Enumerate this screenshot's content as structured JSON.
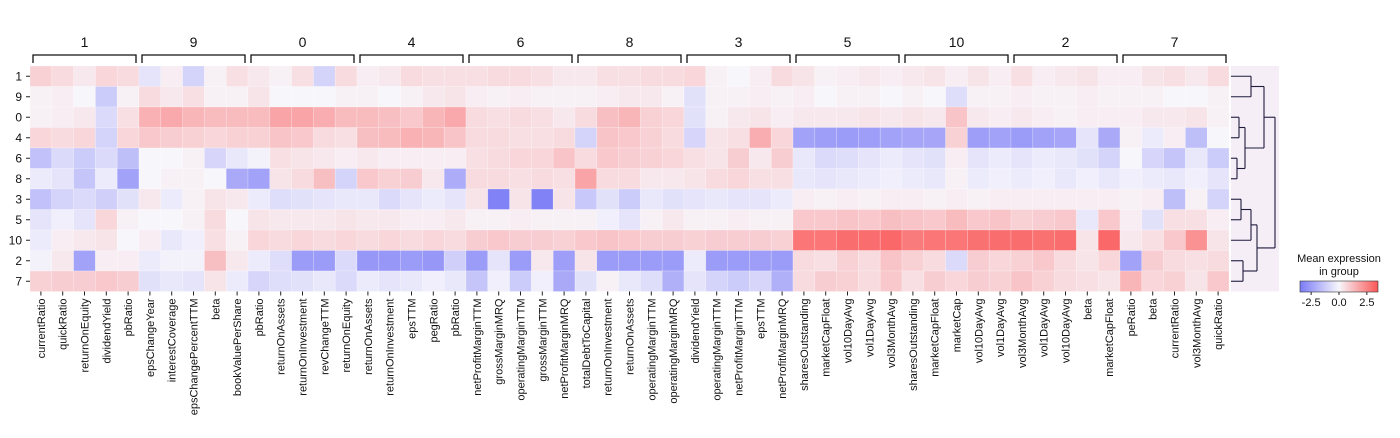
{
  "chart_data": {
    "type": "heatmap",
    "title": "",
    "colorbar": {
      "title_line1": "Mean expression",
      "title_line2": "in group",
      "ticks": [
        "-2.5",
        "0.0",
        "2.5"
      ],
      "vmin": -3.5,
      "vmax": 3.5,
      "low_color": "#7b7bf7",
      "mid_color": "#f7f6fb",
      "high_color": "#fb5656"
    },
    "rows": [
      "1",
      "9",
      "0",
      "4",
      "6",
      "8",
      "3",
      "5",
      "10",
      "2",
      "7"
    ],
    "groups": [
      {
        "label": "1",
        "features": [
          "currentRatio",
          "quickRatio",
          "returnOnEquity",
          "dividendYield",
          "pbRatio"
        ]
      },
      {
        "label": "9",
        "features": [
          "epsChangeYear",
          "interestCoverage",
          "epsChangePercentTTM",
          "beta",
          "bookValuePerShare"
        ]
      },
      {
        "label": "0",
        "features": [
          "pbRatio",
          "returnOnAssets",
          "returnOnInvestment",
          "revChangeTTM",
          "returnOnEquity"
        ]
      },
      {
        "label": "4",
        "features": [
          "returnOnAssets",
          "returnOnInvestment",
          "epsTTM",
          "pegRatio",
          "pbRatio"
        ]
      },
      {
        "label": "6",
        "features": [
          "netProfitMarginTTM",
          "grossMarginMRQ",
          "operatingMarginTTM",
          "grossMarginTTM",
          "netProfitMarginMRQ"
        ]
      },
      {
        "label": "8",
        "features": [
          "totalDebtToCapital",
          "returnOnInvestment",
          "returnOnAssets",
          "operatingMarginTTM",
          "operatingMarginMRQ"
        ]
      },
      {
        "label": "3",
        "features": [
          "dividendYield",
          "operatingMarginTTM",
          "netProfitMarginTTM",
          "epsTTM",
          "netProfitMarginMRQ"
        ]
      },
      {
        "label": "5",
        "features": [
          "sharesOutstanding",
          "marketCapFloat",
          "vol10DayAvg",
          "vol1DayAvg",
          "vol3MonthAvg"
        ]
      },
      {
        "label": "10",
        "features": [
          "sharesOutstanding",
          "marketCapFloat",
          "marketCap",
          "vol10DayAvg",
          "vol1DayAvg"
        ]
      },
      {
        "label": "2",
        "features": [
          "vol3MonthAvg",
          "vol1DayAvg",
          "vol10DayAvg",
          "beta",
          "marketCapFloat"
        ]
      },
      {
        "label": "7",
        "features": [
          "peRatio",
          "beta",
          "currentRatio",
          "vol3MonthAvg",
          "quickRatio"
        ]
      }
    ],
    "values": [
      [
        0.8,
        0.6,
        0.3,
        0.7,
        0.6,
        -0.5,
        0.2,
        -1.0,
        0.1,
        0.5,
        0.3,
        0.1,
        0.5,
        -1.0,
        0.6,
        0.2,
        0.3,
        0.6,
        0.5,
        0.5,
        0.5,
        0.6,
        0.6,
        0.5,
        0.3,
        0.3,
        0.5,
        0.5,
        0.6,
        0.6,
        0.7,
        0.1,
        0.0,
        0.2,
        0.6,
        0.4,
        0.1,
        0.2,
        0.3,
        0.2,
        0.3,
        0.4,
        0.2,
        0.4,
        0.2,
        0.5,
        0.2,
        0.3,
        0.4,
        0.2,
        0.2,
        0.4,
        0.5,
        0.3,
        0.6
      ],
      [
        0.1,
        0.2,
        0.0,
        -1.2,
        0.1,
        0.6,
        0.3,
        0.5,
        0.1,
        0.1,
        0.4,
        0.0,
        0.0,
        0.0,
        0.1,
        0.1,
        0.0,
        0.1,
        0.3,
        0.4,
        0.2,
        0.1,
        0.2,
        0.1,
        0.1,
        0.1,
        0.2,
        0.3,
        0.3,
        0.1,
        -0.6,
        0.1,
        0.1,
        0.2,
        0.1,
        0.2,
        0.0,
        0.1,
        0.1,
        0.0,
        0.1,
        0.0,
        -0.7,
        0.1,
        0.1,
        0.2,
        0.1,
        0.1,
        0.2,
        0.1,
        0.1,
        0.1,
        0.0,
        0.0,
        0.1
      ],
      [
        0.1,
        0.2,
        0.3,
        -0.8,
        0.5,
        1.5,
        1.7,
        1.4,
        1.3,
        1.3,
        1.3,
        1.8,
        1.8,
        1.6,
        1.3,
        1.3,
        1.2,
        1.0,
        1.4,
        1.7,
        0.6,
        0.5,
        0.6,
        0.5,
        0.3,
        0.6,
        1.2,
        1.4,
        0.8,
        0.7,
        -0.6,
        0.1,
        0.3,
        0.4,
        0.2,
        0.3,
        0.3,
        0.3,
        0.4,
        0.3,
        0.4,
        0.3,
        1.1,
        0.3,
        0.2,
        0.3,
        0.2,
        0.1,
        0.2,
        0.2,
        0.2,
        0.3,
        0.3,
        0.4,
        0.1
      ],
      [
        0.7,
        0.6,
        0.7,
        -1.0,
        0.7,
        1.0,
        0.9,
        0.8,
        0.7,
        0.8,
        0.8,
        1.1,
        1.0,
        0.6,
        0.5,
        1.2,
        1.3,
        1.5,
        1.4,
        1.1,
        0.6,
        0.6,
        0.5,
        0.5,
        0.6,
        -1.0,
        1.1,
        1.0,
        0.8,
        0.6,
        -0.9,
        0.4,
        0.5,
        1.6,
        0.7,
        -2.4,
        -2.5,
        -2.6,
        -2.5,
        -2.4,
        -2.3,
        -2.3,
        0.8,
        -2.5,
        -2.4,
        -2.6,
        -2.4,
        -2.3,
        -0.5,
        -2.2,
        0.1,
        -0.3,
        0.2,
        -1.6,
        0.0
      ],
      [
        -1.5,
        -0.8,
        -1.2,
        -0.8,
        -1.6,
        0.0,
        0.0,
        0.1,
        -0.9,
        -0.4,
        -0.1,
        0.5,
        0.4,
        0.3,
        0.2,
        0.3,
        0.2,
        0.2,
        0.2,
        0.2,
        0.5,
        0.6,
        0.7,
        0.7,
        1.1,
        0.6,
        1.0,
        0.9,
        0.8,
        0.7,
        0.5,
        0.4,
        0.9,
        0.3,
        0.9,
        -0.4,
        -0.8,
        -0.7,
        -0.5,
        -0.3,
        -0.5,
        -0.6,
        0.2,
        -0.5,
        -0.3,
        -0.5,
        -0.3,
        -0.4,
        -0.6,
        -1.0,
        0.0,
        -0.9,
        -1.4,
        -0.4,
        -1.2
      ],
      [
        -0.3,
        -0.5,
        -1.4,
        -0.3,
        -2.4,
        0.0,
        0.1,
        0.1,
        0.0,
        -2.2,
        -2.4,
        0.4,
        0.6,
        1.2,
        -1.0,
        1.0,
        0.8,
        0.9,
        0.3,
        -2.1,
        0.6,
        0.6,
        0.5,
        0.6,
        0.5,
        1.8,
        0.6,
        0.6,
        0.3,
        0.3,
        0.4,
        0.6,
        0.7,
        0.5,
        0.5,
        -0.4,
        -0.5,
        -0.4,
        -0.3,
        -0.2,
        -0.3,
        -0.4,
        0.1,
        -0.3,
        -0.2,
        -0.3,
        -0.2,
        -0.4,
        -0.2,
        -0.4,
        -0.2,
        -0.3,
        -0.4,
        -0.2,
        -0.5
      ],
      [
        -1.5,
        -1.0,
        -0.8,
        -1.1,
        -0.6,
        0.3,
        -0.3,
        0.1,
        0.4,
        0.3,
        -0.3,
        -0.7,
        -0.6,
        -0.5,
        -0.4,
        -0.4,
        -0.8,
        -0.5,
        -0.3,
        -0.5,
        0.4,
        -3.3,
        0.4,
        -3.3,
        0.4,
        -1.3,
        -0.6,
        -1.2,
        -0.4,
        -0.6,
        -0.5,
        -0.4,
        -0.5,
        -0.5,
        -0.3,
        0.2,
        0.1,
        0.2,
        0.1,
        0.2,
        0.2,
        0.1,
        0.2,
        0.1,
        0.2,
        0.2,
        0.2,
        0.2,
        0.2,
        0.2,
        0.1,
        0.2,
        -1.6,
        0.1,
        -1.0
      ],
      [
        -0.5,
        -0.2,
        -0.5,
        0.7,
        0.1,
        0.0,
        0.0,
        0.1,
        0.6,
        0.0,
        0.4,
        0.3,
        0.3,
        0.3,
        0.4,
        0.3,
        0.3,
        0.2,
        0.2,
        0.3,
        0.1,
        0.1,
        0.2,
        0.1,
        0.1,
        0.1,
        -0.2,
        -0.5,
        0.1,
        0.3,
        0.1,
        0.1,
        0.2,
        0.1,
        0.1,
        1.0,
        1.0,
        1.1,
        1.0,
        1.2,
        1.1,
        1.0,
        1.3,
        1.0,
        1.1,
        0.8,
        0.9,
        1.0,
        -0.4,
        1.0,
        0.2,
        -0.6,
        0.5,
        0.5,
        0.2
      ],
      [
        -0.3,
        0.2,
        0.3,
        0.4,
        0.0,
        0.2,
        -0.4,
        -0.2,
        0.5,
        0.1,
        0.7,
        0.6,
        0.7,
        0.6,
        0.7,
        0.6,
        0.7,
        0.6,
        0.7,
        0.6,
        0.9,
        1.0,
        0.9,
        0.9,
        0.8,
        1.0,
        1.1,
        1.0,
        0.9,
        0.9,
        0.8,
        0.9,
        0.9,
        0.9,
        0.8,
        2.8,
        2.8,
        3.0,
        3.0,
        3.1,
        2.7,
        2.8,
        2.8,
        2.9,
        3.0,
        3.0,
        2.9,
        3.0,
        0.4,
        3.1,
        0.3,
        0.5,
        1.0,
        2.2,
        0.4
      ],
      [
        -0.1,
        0.3,
        -2.4,
        0.2,
        0.2,
        -0.3,
        -0.1,
        -0.1,
        1.2,
        0.3,
        -0.3,
        -0.7,
        -2.6,
        -2.6,
        -0.8,
        -2.7,
        -2.7,
        -2.6,
        -2.7,
        -1.1,
        -2.6,
        -0.5,
        -2.6,
        0.3,
        -2.5,
        0.4,
        -2.6,
        -2.6,
        -2.6,
        -2.6,
        -0.3,
        -2.6,
        -2.6,
        -2.5,
        -2.6,
        0.6,
        0.5,
        0.8,
        0.6,
        1.1,
        0.8,
        0.6,
        -0.8,
        0.9,
        0.7,
        0.8,
        1.0,
        0.6,
        0.4,
        0.7,
        -2.4,
        0.9,
        0.6,
        0.5,
        0.6
      ],
      [
        0.8,
        0.9,
        0.9,
        1.0,
        0.9,
        -0.6,
        -0.4,
        -0.5,
        0.4,
        -0.3,
        -0.9,
        -0.7,
        -0.6,
        -0.4,
        -0.8,
        -0.3,
        -0.5,
        -0.4,
        -0.2,
        -0.4,
        -1.4,
        -0.2,
        -1.2,
        -0.2,
        -2.2,
        -0.6,
        0.1,
        -0.4,
        -0.7,
        -2.0,
        -0.5,
        -1.0,
        -1.2,
        -0.9,
        -2.0,
        0.6,
        0.9,
        0.8,
        0.6,
        1.0,
        0.5,
        0.9,
        0.7,
        0.9,
        0.8,
        1.1,
        0.8,
        0.6,
        0.5,
        0.4,
        1.4,
        0.7,
        0.8,
        0.4,
        1.0
      ]
    ],
    "dendrogram_order": [
      "1",
      "9",
      "0",
      "4",
      "6",
      "8",
      "3",
      "5",
      "10",
      "2",
      "7"
    ]
  }
}
